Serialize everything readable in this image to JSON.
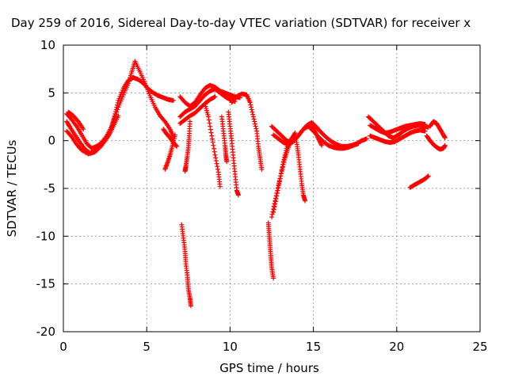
{
  "chart_data": {
    "type": "scatter",
    "title": "Day 259 of 2016, Sidereal Day-to-day VTEC variation (SDTVAR) for receiver x",
    "xlabel": "GPS time / hours",
    "ylabel": "SDTVAR / TECUs",
    "xlim": [
      0,
      25
    ],
    "ylim": [
      -20,
      10
    ],
    "xticks": [
      0,
      5,
      10,
      15,
      20,
      25
    ],
    "yticks": [
      -20,
      -15,
      -10,
      -5,
      0,
      5,
      10
    ],
    "grid": true,
    "marker": "+",
    "marker_color": "#ff0000",
    "segments": [
      [
        [
          0.2,
          2.8
        ],
        [
          0.5,
          2.2
        ],
        [
          0.8,
          1.5
        ],
        [
          1.1,
          0.6
        ],
        [
          1.4,
          -0.3
        ],
        [
          1.7,
          -0.8
        ],
        [
          2.0,
          -0.6
        ],
        [
          2.3,
          -0.2
        ],
        [
          2.6,
          0.5
        ],
        [
          2.9,
          1.5
        ],
        [
          3.1,
          2.8
        ],
        [
          3.3,
          4.2
        ],
        [
          3.6,
          5.5
        ],
        [
          3.9,
          6.3
        ],
        [
          4.2,
          6.6
        ],
        [
          4.5,
          6.4
        ],
        [
          4.8,
          6.0
        ],
        [
          5.1,
          5.4
        ],
        [
          5.4,
          5.0
        ],
        [
          5.7,
          4.7
        ],
        [
          6.0,
          4.5
        ],
        [
          6.3,
          4.3
        ],
        [
          6.6,
          4.2
        ]
      ],
      [
        [
          0.2,
          2.0
        ],
        [
          0.4,
          1.4
        ],
        [
          0.7,
          0.6
        ],
        [
          1.0,
          -0.2
        ],
        [
          1.3,
          -0.9
        ],
        [
          1.6,
          -1.3
        ],
        [
          1.9,
          -1.1
        ],
        [
          2.2,
          -0.6
        ],
        [
          2.5,
          0.0
        ],
        [
          2.8,
          0.8
        ],
        [
          3.0,
          2.0
        ],
        [
          3.3,
          3.5
        ],
        [
          3.6,
          4.8
        ],
        [
          3.9,
          6.0
        ],
        [
          4.1,
          7.2
        ],
        [
          4.3,
          8.3
        ]
      ],
      [
        [
          0.2,
          1.0
        ],
        [
          0.5,
          0.4
        ],
        [
          0.8,
          -0.4
        ],
        [
          1.1,
          -1.0
        ],
        [
          1.5,
          -1.4
        ],
        [
          1.9,
          -1.2
        ],
        [
          2.3,
          -0.5
        ],
        [
          2.7,
          0.5
        ],
        [
          3.0,
          1.5
        ],
        [
          3.3,
          2.6
        ]
      ],
      [
        [
          0.3,
          3.0
        ],
        [
          0.6,
          2.6
        ],
        [
          0.9,
          2.0
        ],
        [
          1.2,
          1.2
        ]
      ],
      [
        [
          4.3,
          8.3
        ],
        [
          4.6,
          7.2
        ],
        [
          4.9,
          6.0
        ],
        [
          5.2,
          4.7
        ],
        [
          5.5,
          3.5
        ],
        [
          5.8,
          2.6
        ],
        [
          6.1,
          2.0
        ],
        [
          6.4,
          1.2
        ],
        [
          6.6,
          0.4
        ]
      ],
      [
        [
          6.0,
          1.2
        ],
        [
          6.2,
          0.7
        ],
        [
          6.4,
          0.3
        ],
        [
          6.6,
          -0.2
        ],
        [
          6.8,
          -0.6
        ]
      ],
      [
        [
          6.7,
          0.6
        ],
        [
          6.55,
          -0.5
        ],
        [
          6.4,
          -1.5
        ],
        [
          6.25,
          -2.3
        ],
        [
          6.1,
          -3.0
        ]
      ],
      [
        [
          7.0,
          4.6
        ],
        [
          7.3,
          4.0
        ],
        [
          7.6,
          3.6
        ],
        [
          7.9,
          4.0
        ],
        [
          8.2,
          4.8
        ],
        [
          8.5,
          5.5
        ],
        [
          8.8,
          5.8
        ],
        [
          9.1,
          5.6
        ],
        [
          9.4,
          5.2
        ],
        [
          9.7,
          5.0
        ],
        [
          10.0,
          4.8
        ],
        [
          10.3,
          4.6
        ],
        [
          10.6,
          4.5
        ]
      ],
      [
        [
          7.0,
          2.5
        ],
        [
          7.3,
          3.0
        ],
        [
          7.6,
          3.3
        ],
        [
          7.9,
          3.6
        ],
        [
          8.2,
          4.2
        ],
        [
          8.5,
          4.8
        ],
        [
          8.8,
          5.2
        ],
        [
          9.1,
          5.4
        ],
        [
          9.4,
          5.0
        ],
        [
          9.7,
          4.6
        ],
        [
          10.0,
          4.3
        ],
        [
          10.3,
          4.1
        ]
      ],
      [
        [
          7.0,
          1.8
        ],
        [
          7.3,
          2.2
        ],
        [
          7.6,
          2.6
        ],
        [
          7.9,
          2.9
        ],
        [
          8.2,
          3.4
        ],
        [
          8.5,
          3.9
        ],
        [
          8.8,
          4.3
        ],
        [
          9.1,
          4.6
        ]
      ],
      [
        [
          7.6,
          2.0
        ],
        [
          7.55,
          0.5
        ],
        [
          7.5,
          -0.7
        ],
        [
          7.42,
          -1.8
        ],
        [
          7.35,
          -2.7
        ],
        [
          7.3,
          -3.2
        ]
      ],
      [
        [
          8.5,
          3.8
        ],
        [
          8.7,
          2.5
        ],
        [
          8.9,
          0.5
        ],
        [
          9.1,
          -1.5
        ],
        [
          9.3,
          -3.3
        ],
        [
          9.4,
          -4.8
        ]
      ],
      [
        [
          9.9,
          3.0
        ],
        [
          10.0,
          1.5
        ],
        [
          10.1,
          0.0
        ],
        [
          10.2,
          -1.8
        ],
        [
          10.3,
          -3.5
        ],
        [
          10.4,
          -5.2
        ],
        [
          10.5,
          -5.7
        ]
      ],
      [
        [
          9.5,
          2.5
        ],
        [
          9.6,
          1.0
        ],
        [
          9.7,
          -0.5
        ],
        [
          9.75,
          -1.5
        ],
        [
          9.8,
          -2.2
        ]
      ],
      [
        [
          10.1,
          4.0
        ],
        [
          10.4,
          4.6
        ],
        [
          10.7,
          4.9
        ],
        [
          11.0,
          4.8
        ],
        [
          11.2,
          4.0
        ],
        [
          11.4,
          2.5
        ],
        [
          11.6,
          1.0
        ],
        [
          11.7,
          -0.6
        ],
        [
          11.8,
          -1.8
        ],
        [
          11.9,
          -3.0
        ]
      ],
      [
        [
          7.1,
          -8.8
        ],
        [
          7.2,
          -10.2
        ],
        [
          7.3,
          -11.6
        ],
        [
          7.35,
          -12.9
        ],
        [
          7.45,
          -14.3
        ],
        [
          7.5,
          -15.5
        ],
        [
          7.6,
          -16.5
        ],
        [
          7.65,
          -17.3
        ]
      ],
      [
        [
          12.3,
          -8.6
        ],
        [
          12.35,
          -9.8
        ],
        [
          12.4,
          -11.0
        ],
        [
          12.45,
          -12.2
        ],
        [
          12.5,
          -13.3
        ],
        [
          12.6,
          -14.4
        ]
      ],
      [
        [
          12.5,
          -8.0
        ],
        [
          12.7,
          -6.3
        ],
        [
          12.9,
          -4.7
        ],
        [
          13.1,
          -3.2
        ],
        [
          13.3,
          -1.8
        ],
        [
          13.5,
          -0.7
        ],
        [
          13.7,
          0.2
        ],
        [
          13.9,
          0.8
        ]
      ],
      [
        [
          12.6,
          -7.5
        ],
        [
          12.8,
          -5.8
        ],
        [
          13.0,
          -4.0
        ],
        [
          13.2,
          -2.2
        ],
        [
          13.4,
          -0.8
        ],
        [
          13.6,
          0.1
        ]
      ],
      [
        [
          12.5,
          1.5
        ],
        [
          12.8,
          1.0
        ],
        [
          13.1,
          0.5
        ],
        [
          13.4,
          0.0
        ],
        [
          13.7,
          -0.2
        ],
        [
          14.0,
          0.3
        ],
        [
          14.3,
          1.0
        ],
        [
          14.6,
          1.6
        ],
        [
          14.9,
          1.9
        ],
        [
          15.2,
          1.4
        ],
        [
          15.5,
          0.8
        ],
        [
          15.8,
          0.3
        ],
        [
          16.1,
          -0.1
        ],
        [
          16.4,
          -0.4
        ],
        [
          16.7,
          -0.6
        ],
        [
          17.0,
          -0.6
        ],
        [
          17.3,
          -0.5
        ],
        [
          17.6,
          -0.3
        ],
        [
          17.9,
          0.0
        ],
        [
          18.2,
          0.2
        ]
      ],
      [
        [
          12.6,
          0.6
        ],
        [
          12.9,
          0.2
        ],
        [
          13.2,
          -0.2
        ],
        [
          13.5,
          -0.4
        ],
        [
          13.8,
          -0.1
        ],
        [
          14.1,
          0.5
        ],
        [
          14.4,
          1.2
        ],
        [
          14.7,
          1.5
        ],
        [
          15.0,
          1.0
        ],
        [
          15.3,
          0.4
        ],
        [
          15.6,
          -0.1
        ],
        [
          15.9,
          -0.5
        ],
        [
          16.2,
          -0.7
        ],
        [
          16.5,
          -0.8
        ],
        [
          16.8,
          -0.8
        ],
        [
          17.1,
          -0.7
        ],
        [
          17.4,
          -0.5
        ],
        [
          17.7,
          -0.3
        ]
      ],
      [
        [
          14.0,
          -0.2
        ],
        [
          14.1,
          -1.5
        ],
        [
          14.2,
          -3.0
        ],
        [
          14.3,
          -4.5
        ],
        [
          14.4,
          -5.7
        ],
        [
          14.5,
          -6.3
        ]
      ],
      [
        [
          14.9,
          1.8
        ],
        [
          15.1,
          1.0
        ],
        [
          15.3,
          0.2
        ],
        [
          15.5,
          -0.5
        ]
      ],
      [
        [
          18.3,
          2.5
        ],
        [
          18.6,
          2.0
        ],
        [
          18.9,
          1.5
        ],
        [
          19.2,
          1.0
        ],
        [
          19.5,
          0.5
        ],
        [
          19.8,
          0.3
        ],
        [
          20.1,
          0.6
        ],
        [
          20.4,
          1.0
        ],
        [
          20.7,
          1.3
        ],
        [
          21.0,
          1.5
        ],
        [
          21.3,
          1.6
        ],
        [
          21.6,
          1.5
        ],
        [
          21.9,
          1.4
        ]
      ],
      [
        [
          18.4,
          0.5
        ],
        [
          18.7,
          0.3
        ],
        [
          19.0,
          0.1
        ],
        [
          19.3,
          -0.1
        ],
        [
          19.6,
          -0.2
        ],
        [
          19.9,
          -0.1
        ],
        [
          20.2,
          0.2
        ],
        [
          20.5,
          0.5
        ],
        [
          20.8,
          0.8
        ],
        [
          21.1,
          1.0
        ],
        [
          21.4,
          1.1
        ],
        [
          21.7,
          1.0
        ]
      ],
      [
        [
          18.4,
          1.6
        ],
        [
          18.7,
          1.3
        ],
        [
          19.0,
          1.0
        ],
        [
          19.3,
          0.8
        ],
        [
          19.6,
          0.9
        ],
        [
          19.9,
          1.1
        ],
        [
          20.2,
          1.3
        ],
        [
          20.5,
          1.5
        ],
        [
          20.8,
          1.6
        ],
        [
          21.1,
          1.7
        ],
        [
          21.4,
          1.8
        ],
        [
          21.7,
          1.7
        ]
      ],
      [
        [
          21.8,
          0.5
        ],
        [
          22.0,
          0.0
        ],
        [
          22.2,
          -0.4
        ],
        [
          22.4,
          -0.7
        ],
        [
          22.6,
          -0.9
        ],
        [
          22.8,
          -0.8
        ],
        [
          22.9,
          -0.5
        ]
      ],
      [
        [
          22.0,
          1.5
        ],
        [
          22.2,
          2.0
        ],
        [
          22.4,
          1.8
        ],
        [
          22.6,
          1.2
        ],
        [
          22.8,
          0.6
        ],
        [
          22.9,
          0.3
        ]
      ],
      [
        [
          20.8,
          -4.9
        ],
        [
          21.1,
          -4.6
        ],
        [
          21.4,
          -4.3
        ],
        [
          21.7,
          -4.0
        ],
        [
          21.9,
          -3.7
        ]
      ]
    ]
  }
}
